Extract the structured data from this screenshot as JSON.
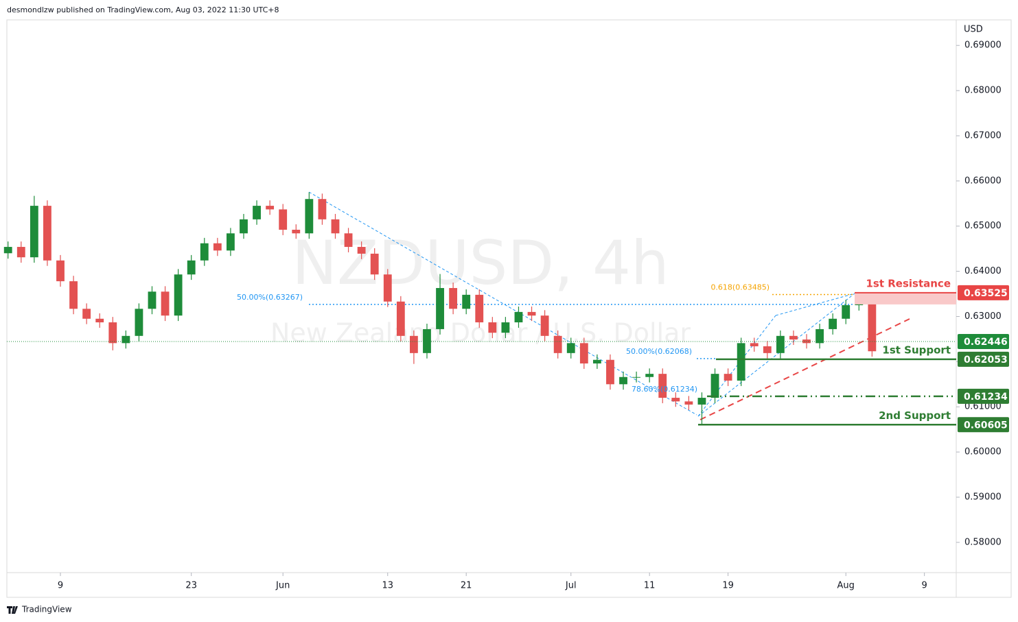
{
  "header": "desmondlzw published on TradingView.com, Aug 03, 2022 11:30 UTC+8",
  "footer": "TradingView",
  "chart_data": {
    "type": "candlestick",
    "watermark": "NZDUSD, 4h",
    "watermark_subtitle": "New Zealand Dollar / U.S. Dollar",
    "y_unit": "USD",
    "up_color": "#1e8c3a",
    "down_color": "#e35252",
    "x": [
      -4,
      -3,
      -2,
      -1,
      0,
      1,
      2,
      3,
      4,
      5,
      6,
      7,
      8,
      9,
      10,
      11,
      12,
      13,
      14,
      15,
      16,
      17,
      18,
      19,
      20,
      21,
      22,
      23,
      24,
      25,
      26,
      27,
      28,
      29,
      30,
      31,
      32,
      33,
      34,
      35,
      36,
      37,
      38,
      39,
      40,
      41,
      42,
      43,
      44,
      45,
      46,
      47,
      48,
      49,
      50,
      51,
      52,
      53,
      54,
      55,
      56,
      57,
      58,
      59,
      60,
      61,
      62
    ],
    "open": [
      0.644,
      0.6454,
      0.6431,
      0.6545,
      0.6424,
      0.6378,
      0.6317,
      0.6295,
      0.6287,
      0.6241,
      0.6257,
      0.6317,
      0.6355,
      0.6302,
      0.6393,
      0.6424,
      0.6462,
      0.6446,
      0.6484,
      0.6515,
      0.6545,
      0.6537,
      0.6492,
      0.6484,
      0.656,
      0.6515,
      0.6484,
      0.6454,
      0.6439,
      0.6393,
      0.6333,
      0.6257,
      0.6219,
      0.6272,
      0.6363,
      0.6317,
      0.6348,
      0.6287,
      0.6264,
      0.6287,
      0.631,
      0.6302,
      0.6257,
      0.6219,
      0.6241,
      0.6196,
      0.6204,
      0.615,
      0.6166,
      0.6166,
      0.6173,
      0.612,
      0.6112,
      0.6105,
      0.612,
      0.6173,
      0.6158,
      0.6241,
      0.6234,
      0.6219,
      0.6257,
      0.6249,
      0.6241,
      0.6272,
      0.6295,
      0.6325,
      0.6333
    ],
    "high": [
      0.6466,
      0.6466,
      0.6567,
      0.6557,
      0.6436,
      0.639,
      0.6329,
      0.6307,
      0.6299,
      0.6269,
      0.6329,
      0.6367,
      0.6367,
      0.6405,
      0.6436,
      0.6474,
      0.6474,
      0.6496,
      0.6527,
      0.6557,
      0.6557,
      0.6549,
      0.6504,
      0.6575,
      0.6572,
      0.6527,
      0.6496,
      0.6466,
      0.6451,
      0.6405,
      0.6345,
      0.6269,
      0.6284,
      0.6394,
      0.6375,
      0.636,
      0.636,
      0.6299,
      0.6299,
      0.6322,
      0.6322,
      0.6314,
      0.6269,
      0.6253,
      0.6253,
      0.6216,
      0.6216,
      0.6178,
      0.6178,
      0.6185,
      0.6185,
      0.6132,
      0.6124,
      0.6132,
      0.6185,
      0.6185,
      0.6253,
      0.6253,
      0.6246,
      0.6269,
      0.6269,
      0.6261,
      0.6284,
      0.6307,
      0.6337,
      0.6353,
      0.6345
    ],
    "low": [
      0.6428,
      0.6419,
      0.6419,
      0.6412,
      0.6366,
      0.6305,
      0.6283,
      0.6275,
      0.6225,
      0.6229,
      0.6245,
      0.6305,
      0.629,
      0.629,
      0.6381,
      0.6412,
      0.6434,
      0.6434,
      0.6472,
      0.6503,
      0.6525,
      0.648,
      0.6472,
      0.6472,
      0.6503,
      0.6472,
      0.6442,
      0.6427,
      0.6381,
      0.6321,
      0.6245,
      0.6195,
      0.6207,
      0.626,
      0.6305,
      0.6305,
      0.6275,
      0.6252,
      0.6252,
      0.6275,
      0.629,
      0.6245,
      0.6207,
      0.6207,
      0.6184,
      0.6184,
      0.6138,
      0.6138,
      0.6154,
      0.6154,
      0.6108,
      0.61,
      0.6093,
      0.606,
      0.6108,
      0.6146,
      0.6146,
      0.6222,
      0.6207,
      0.6207,
      0.6237,
      0.6229,
      0.6229,
      0.626,
      0.6283,
      0.6313,
      0.6211
    ],
    "close": [
      0.6454,
      0.6431,
      0.6545,
      0.6424,
      0.6378,
      0.6317,
      0.6295,
      0.6287,
      0.6241,
      0.6257,
      0.6317,
      0.6355,
      0.6302,
      0.6393,
      0.6424,
      0.6462,
      0.6446,
      0.6484,
      0.6515,
      0.6545,
      0.6537,
      0.6492,
      0.6484,
      0.656,
      0.6515,
      0.6484,
      0.6454,
      0.6439,
      0.6393,
      0.6333,
      0.6257,
      0.6219,
      0.6272,
      0.6363,
      0.6317,
      0.6348,
      0.6287,
      0.6264,
      0.6287,
      0.631,
      0.6302,
      0.6257,
      0.6219,
      0.6241,
      0.6196,
      0.6204,
      0.615,
      0.6166,
      0.6166,
      0.6173,
      0.612,
      0.6112,
      0.6105,
      0.612,
      0.6173,
      0.6158,
      0.6241,
      0.6234,
      0.6219,
      0.6257,
      0.6249,
      0.6241,
      0.6272,
      0.6295,
      0.6325,
      0.6333,
      0.6223
    ],
    "xlim": [
      -4.09,
      68.43
    ],
    "xticks": [
      {
        "value": 0,
        "label": "9"
      },
      {
        "value": 10,
        "label": "23"
      },
      {
        "value": 17,
        "label": "Jun"
      },
      {
        "value": 25,
        "label": "13"
      },
      {
        "value": 31,
        "label": "21"
      },
      {
        "value": 39,
        "label": "Jul"
      },
      {
        "value": 45,
        "label": "11"
      },
      {
        "value": 51,
        "label": "19"
      },
      {
        "value": 60,
        "label": "Aug"
      },
      {
        "value": 66,
        "label": "9"
      }
    ],
    "ylim": [
      0.5733,
      0.6955
    ],
    "yticks": [
      {
        "value": 0.58,
        "label": "0.58000"
      },
      {
        "value": 0.59,
        "label": "0.59000"
      },
      {
        "value": 0.6,
        "label": "0.60000"
      },
      {
        "value": 0.61,
        "label": "0.61000"
      },
      {
        "value": 0.62,
        "label": "0.62000"
      },
      {
        "value": 0.63,
        "label": "0.63000"
      },
      {
        "value": 0.64,
        "label": "0.64000"
      },
      {
        "value": 0.65,
        "label": "0.65000"
      },
      {
        "value": 0.66,
        "label": "0.66000"
      },
      {
        "value": 0.67,
        "label": "0.67000"
      },
      {
        "value": 0.68,
        "label": "0.68000"
      },
      {
        "value": 0.69,
        "label": "0.69000"
      }
    ],
    "levels": [
      {
        "name": "1st Resistance",
        "value": 0.63525,
        "color": "#e84545"
      },
      {
        "value": 0.62446,
        "color": "#1e8c3a"
      },
      {
        "name": "1st Support",
        "value": 0.62053,
        "color": "#2e7d32"
      },
      {
        "value": 0.61234,
        "color": "#2e7d32"
      },
      {
        "name": "2nd Support",
        "value": 0.60605,
        "color": "#2e7d32"
      }
    ],
    "fib_labels": [
      {
        "label": "50.00%(0.63267)",
        "value": 0.63267,
        "color": "#2196f3"
      },
      {
        "label": "0.618(0.63485)",
        "value": 0.63485,
        "color": "#f5a300"
      },
      {
        "label": "50.00%(0.62068)",
        "value": 0.62068,
        "color": "#2196f3"
      },
      {
        "label": "78.60%(0.61234)",
        "value": 0.61234,
        "color": "#2196f3"
      }
    ]
  }
}
